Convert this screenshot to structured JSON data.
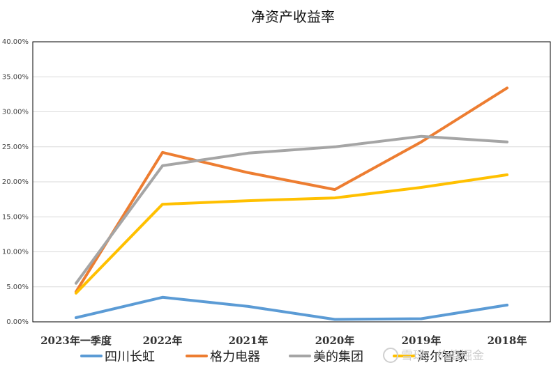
{
  "chart_data": {
    "type": "line",
    "title": "净资产收益率",
    "categories": [
      "2023年一季度",
      "2022年",
      "2021年",
      "2020年",
      "2019年",
      "2018年"
    ],
    "ylim": [
      0,
      40
    ],
    "ytick_labels": [
      "0.00%",
      "5.00%",
      "10.00%",
      "15.00%",
      "20.00%",
      "25.00%",
      "30.00%",
      "35.00%",
      "40.00%"
    ],
    "grid": true,
    "legend_position": "bottom",
    "series": [
      {
        "name": "四川长虹",
        "color": "#5B9BD5",
        "values": [
          0.6,
          3.5,
          2.2,
          0.35,
          0.45,
          2.4
        ]
      },
      {
        "name": "格力电器",
        "color": "#ED7D31",
        "values": [
          4.3,
          24.2,
          21.3,
          18.9,
          25.7,
          33.4
        ]
      },
      {
        "name": "美的集团",
        "color": "#A5A5A5",
        "values": [
          5.5,
          22.3,
          24.1,
          25.0,
          26.5,
          25.7
        ]
      },
      {
        "name": "海尔智家",
        "color": "#FFC000",
        "values": [
          4.1,
          16.8,
          17.3,
          17.7,
          19.2,
          21.0
        ]
      }
    ]
  },
  "watermark": {
    "text": "雪球：价值掘金",
    "icon": "snowball-logo-icon"
  }
}
